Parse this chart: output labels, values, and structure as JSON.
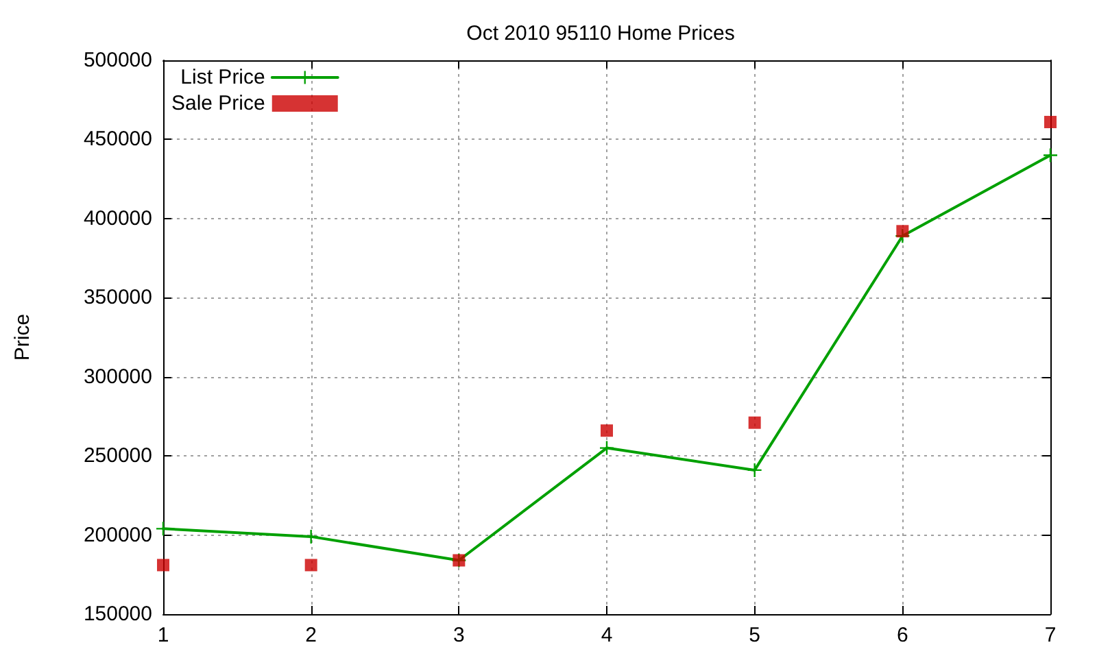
{
  "chart_data": {
    "type": "line",
    "title": "Oct 2010 95110 Home Prices",
    "ylabel": "Price",
    "x": [
      1,
      2,
      3,
      4,
      5,
      6,
      7
    ],
    "series": [
      {
        "name": "List Price",
        "color": "#00a000",
        "marker": "cross",
        "values": [
          204000,
          199000,
          184000,
          255000,
          241000,
          389000,
          440000
        ]
      },
      {
        "name": "Sale Price",
        "type": "scatter",
        "color": "#cc0000",
        "marker": "square",
        "values": [
          181000,
          181000,
          184000,
          266000,
          271000,
          392000,
          461000
        ]
      }
    ],
    "xlim": [
      1,
      7
    ],
    "xticks": [
      1,
      2,
      3,
      4,
      5,
      6,
      7
    ],
    "ylim": [
      150000,
      500000
    ],
    "yticks": [
      150000,
      200000,
      250000,
      300000,
      350000,
      400000,
      450000,
      500000
    ],
    "grid": true,
    "legend": "top left"
  }
}
